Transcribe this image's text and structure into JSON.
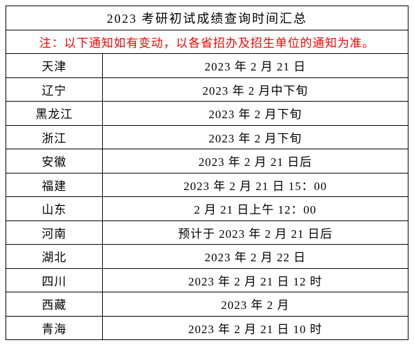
{
  "title": "2023 考研初试成绩查询时间汇总",
  "note": "注：以下通知如有变动，以各省招办及招生单位的通知为准。",
  "columns": [
    "province",
    "time"
  ],
  "rows": [
    {
      "province": "天津",
      "time": "2023 年 2 月 21 日"
    },
    {
      "province": "辽宁",
      "time": "2023 年 2 月中下旬"
    },
    {
      "province": "黑龙江",
      "time": "2023 年 2 月下旬"
    },
    {
      "province": "浙江",
      "time": "2023 年 2 月下旬"
    },
    {
      "province": "安徽",
      "time": "2023 年 2 月 21 日后"
    },
    {
      "province": "福建",
      "time": "2023 年 2 月 21 日 15：00"
    },
    {
      "province": "山东",
      "time": "2 月 21 日上午 12：00"
    },
    {
      "province": "河南",
      "time": "预计于 2023 年 2 月 21 日后"
    },
    {
      "province": "湖北",
      "time": "2023 年 2 月 22 日"
    },
    {
      "province": "四川",
      "time": "2023 年 2 月 21 日 12 时"
    },
    {
      "province": "西藏",
      "time": "2023 年 2 月"
    },
    {
      "province": "青海",
      "time": "2023 年 2 月 21 日 10 时"
    }
  ],
  "styles": {
    "border_color": "#000000",
    "background_color": "#ffffff",
    "text_color": "#000000",
    "note_color": "#ff0000",
    "font_family": "SimSun",
    "title_fontsize": 18,
    "cell_fontsize": 17,
    "row_height": 34.5,
    "col_widths": [
      "24%",
      "76%"
    ]
  }
}
